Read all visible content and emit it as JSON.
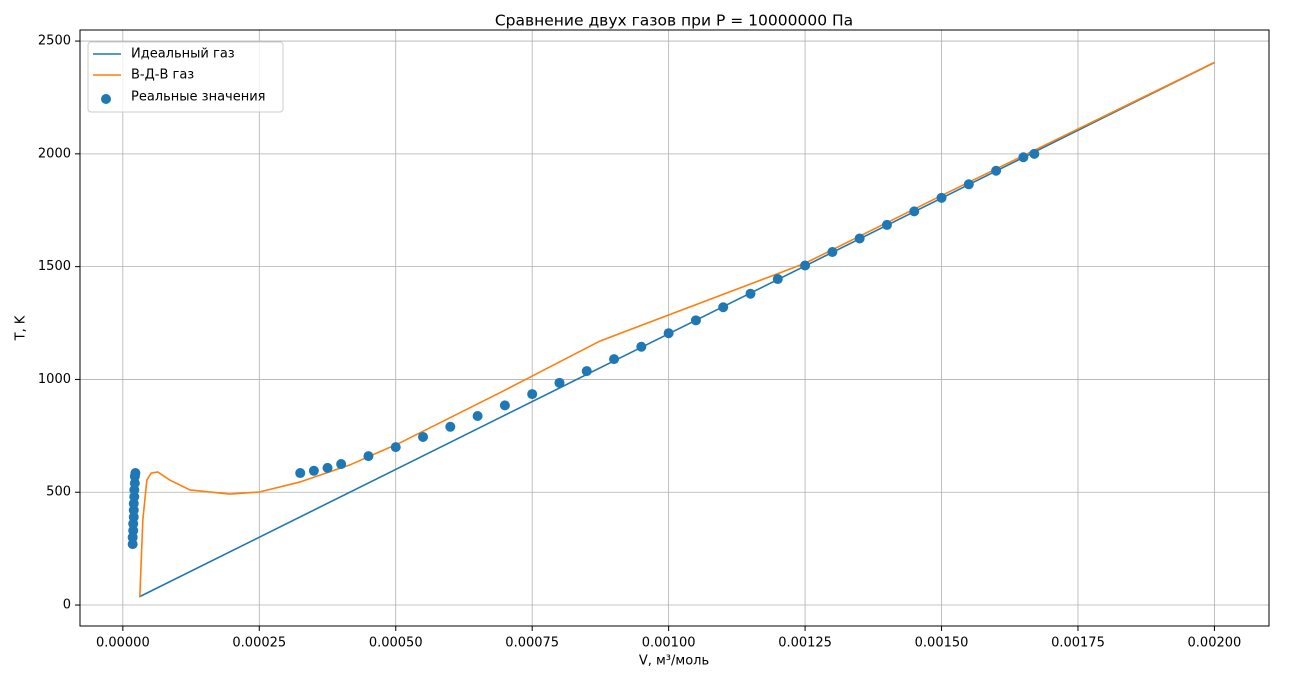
{
  "chart_data": {
    "type": "line",
    "title": "Сравнение двух газов при P = 10000000 Па",
    "x_label": "V, м³/моль",
    "y_label": "T, K",
    "xlim": [
      -7.85e-05,
      0.0021
    ],
    "ylim": [
      -93,
      2549
    ],
    "xticks": [
      {
        "value": 0,
        "label": "0.00000"
      },
      {
        "value": 0.00025,
        "label": "0.00025"
      },
      {
        "value": 0.0005,
        "label": "0.00050"
      },
      {
        "value": 0.00075,
        "label": "0.00075"
      },
      {
        "value": 0.001,
        "label": "0.00100"
      },
      {
        "value": 0.00125,
        "label": "0.00125"
      },
      {
        "value": 0.0015,
        "label": "0.00150"
      },
      {
        "value": 0.00175,
        "label": "0.00175"
      },
      {
        "value": 0.002,
        "label": "0.00200"
      }
    ],
    "yticks": [
      0,
      500,
      1000,
      1500,
      2000,
      2500
    ],
    "grid": true,
    "legend": "upper left",
    "series": [
      {
        "name": "Идеальный газ",
        "type": "line",
        "color": "#1f77b4",
        "x": [
          3e-05,
          0.002
        ],
        "values": [
          36,
          2405
        ]
      },
      {
        "name": "В-Д-В газ",
        "type": "line",
        "color": "#ff7f0e",
        "x": [
          3.11e-05,
          3.66e-05,
          4.4e-05,
          5.2e-05,
          6.4e-05,
          8.6e-05,
          0.000123,
          0.000196,
          0.00025,
          0.000324,
          0.000416,
          0.000507,
          0.00069,
          0.000874,
          0.00125,
          0.0015,
          0.002
        ],
        "values": [
          36,
          377,
          554,
          585,
          590,
          554,
          510,
          492,
          501,
          545,
          621,
          718,
          940,
          1170,
          1515,
          1815,
          2405
        ]
      },
      {
        "name": "Реальные значения",
        "type": "scatter",
        "color": "#1f77b4",
        "x": [
          1.8e-05,
          1.8e-05,
          1.9e-05,
          1.9e-05,
          2e-05,
          2e-05,
          2e-05,
          2.1e-05,
          2.1e-05,
          2.2e-05,
          2.2e-05,
          2.3e-05,
          0.000325,
          0.00035,
          0.000375,
          0.0004,
          0.00045,
          0.0005,
          0.00055,
          0.0006,
          0.00065,
          0.0007,
          0.00075,
          0.0008,
          0.00085,
          0.0009,
          0.00095,
          0.001,
          0.00105,
          0.0011,
          0.00115,
          0.0012,
          0.00125,
          0.0013,
          0.00135,
          0.0014,
          0.00145,
          0.0015,
          0.00155,
          0.0016,
          0.00165,
          0.00167
        ],
        "values": [
          270,
          300,
          330,
          360,
          390,
          420,
          450,
          480,
          510,
          540,
          570,
          585,
          585,
          595,
          608,
          625,
          660,
          700,
          745,
          790,
          838,
          885,
          935,
          985,
          1037,
          1090,
          1145,
          1205,
          1262,
          1320,
          1380,
          1445,
          1505,
          1565,
          1625,
          1685,
          1745,
          1805,
          1865,
          1925,
          1985,
          2000
        ]
      }
    ]
  }
}
